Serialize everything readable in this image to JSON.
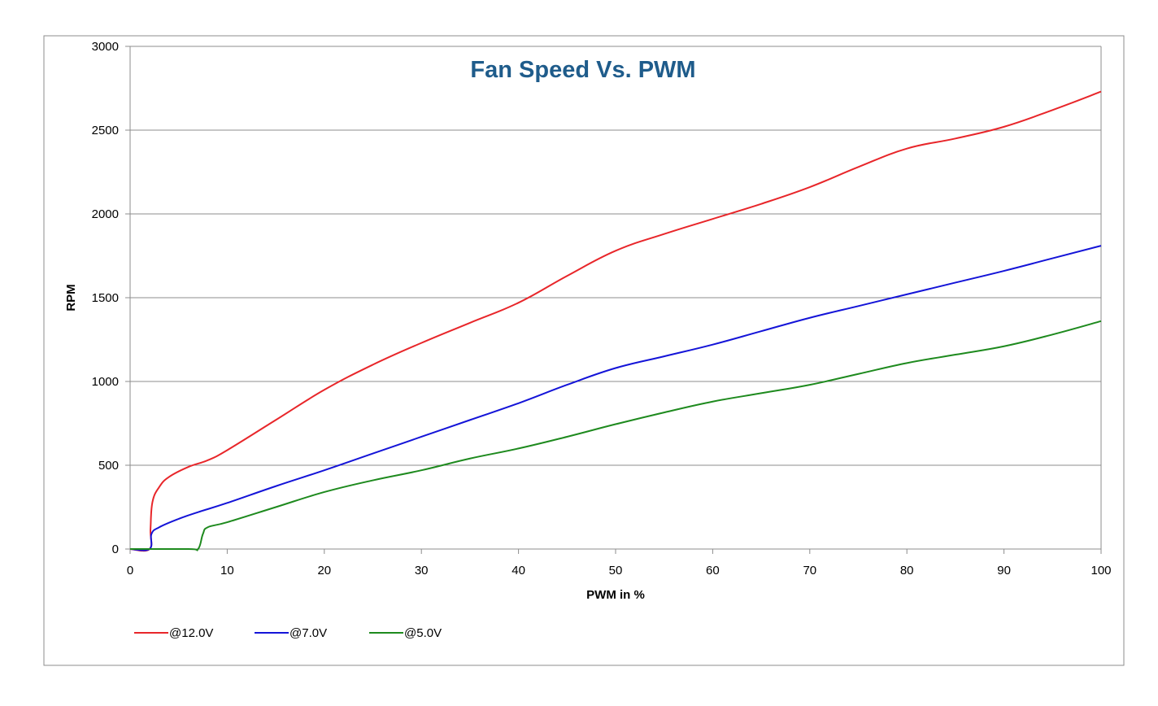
{
  "chart_data": {
    "type": "line",
    "title": "Fan Speed Vs. PWM",
    "title_color": "#1f5c8b",
    "xlabel": "PWM in %",
    "ylabel": "RPM",
    "xlim": [
      0,
      100
    ],
    "ylim": [
      0,
      3000
    ],
    "x_ticks": [
      0,
      10,
      20,
      30,
      40,
      50,
      60,
      70,
      80,
      90,
      100
    ],
    "y_ticks": [
      0,
      500,
      1000,
      1500,
      2000,
      2500,
      3000
    ],
    "grid": "horizontal",
    "legend_position": "bottom-left",
    "series": [
      {
        "name": "@12.0V",
        "color": "#e8262a",
        "points": [
          [
            0,
            0
          ],
          [
            2,
            0
          ],
          [
            2.1,
            120
          ],
          [
            2.3,
            280
          ],
          [
            3,
            370
          ],
          [
            4,
            430
          ],
          [
            6,
            490
          ],
          [
            8,
            530
          ],
          [
            10,
            590
          ],
          [
            15,
            770
          ],
          [
            20,
            950
          ],
          [
            25,
            1100
          ],
          [
            30,
            1230
          ],
          [
            35,
            1350
          ],
          [
            40,
            1470
          ],
          [
            45,
            1630
          ],
          [
            50,
            1780
          ],
          [
            55,
            1880
          ],
          [
            60,
            1970
          ],
          [
            65,
            2060
          ],
          [
            70,
            2160
          ],
          [
            75,
            2280
          ],
          [
            80,
            2390
          ],
          [
            85,
            2450
          ],
          [
            90,
            2520
          ],
          [
            95,
            2620
          ],
          [
            100,
            2730
          ]
        ]
      },
      {
        "name": "@7.0V",
        "color": "#1414d8",
        "points": [
          [
            0,
            0
          ],
          [
            2,
            0
          ],
          [
            2.2,
            90
          ],
          [
            3,
            130
          ],
          [
            5,
            180
          ],
          [
            7,
            220
          ],
          [
            10,
            275
          ],
          [
            15,
            375
          ],
          [
            20,
            470
          ],
          [
            25,
            570
          ],
          [
            30,
            670
          ],
          [
            35,
            770
          ],
          [
            40,
            870
          ],
          [
            45,
            980
          ],
          [
            50,
            1080
          ],
          [
            55,
            1150
          ],
          [
            60,
            1220
          ],
          [
            65,
            1300
          ],
          [
            70,
            1380
          ],
          [
            75,
            1450
          ],
          [
            80,
            1520
          ],
          [
            85,
            1590
          ],
          [
            90,
            1660
          ],
          [
            95,
            1735
          ],
          [
            100,
            1810
          ]
        ]
      },
      {
        "name": "@5.0V",
        "color": "#1e8a1e",
        "points": [
          [
            0,
            0
          ],
          [
            6,
            0
          ],
          [
            7,
            0
          ],
          [
            7.5,
            90
          ],
          [
            8,
            130
          ],
          [
            10,
            160
          ],
          [
            15,
            250
          ],
          [
            20,
            340
          ],
          [
            25,
            410
          ],
          [
            30,
            470
          ],
          [
            35,
            540
          ],
          [
            40,
            600
          ],
          [
            45,
            670
          ],
          [
            50,
            745
          ],
          [
            55,
            815
          ],
          [
            60,
            880
          ],
          [
            65,
            930
          ],
          [
            70,
            980
          ],
          [
            75,
            1045
          ],
          [
            80,
            1110
          ],
          [
            85,
            1160
          ],
          [
            90,
            1210
          ],
          [
            95,
            1280
          ],
          [
            100,
            1360
          ]
        ]
      }
    ]
  }
}
